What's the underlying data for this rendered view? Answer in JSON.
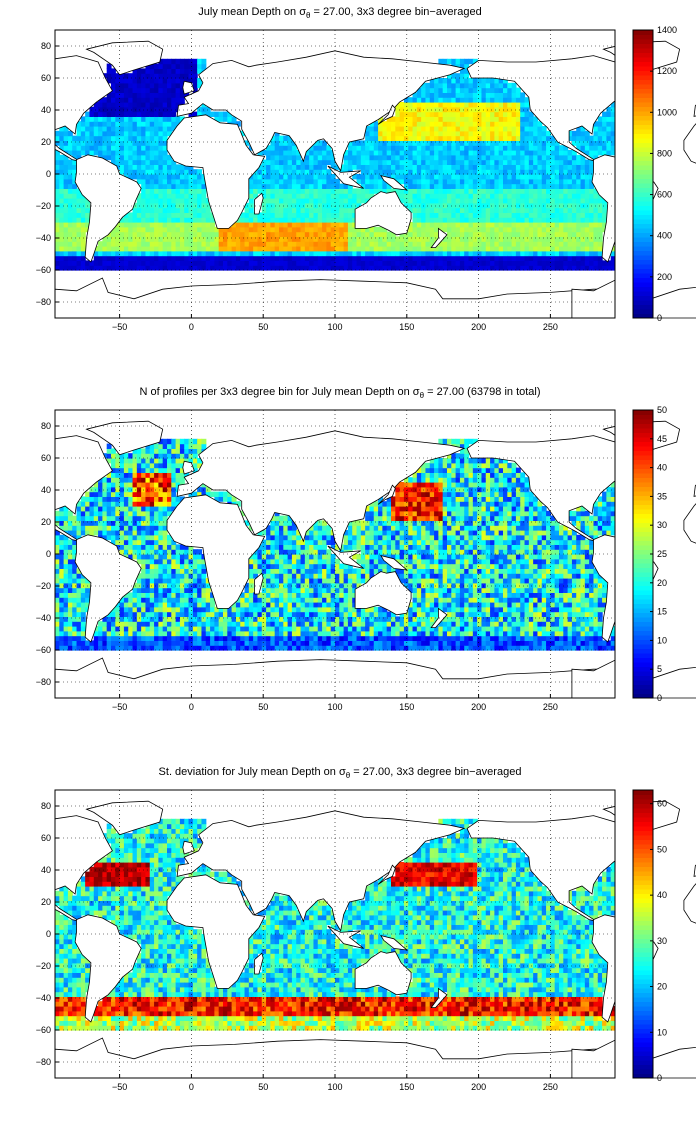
{
  "panels": [
    {
      "title_before": "July mean Depth on ",
      "title_sigma": "σ",
      "title_sub": "θ",
      "title_after": " = 27.00, 3x3 degree bin−averaged",
      "colorbar_ticks": [
        "0",
        "200",
        "400",
        "600",
        "800",
        "1000",
        "1200",
        "1400"
      ]
    },
    {
      "title_before": "N of profiles per 3x3 degree bin for July mean Depth on ",
      "title_sigma": "σ",
      "title_sub": "θ",
      "title_after": " = 27.00 (63798 in total)",
      "colorbar_ticks": [
        "0",
        "5",
        "10",
        "15",
        "20",
        "25",
        "30",
        "35",
        "40",
        "45",
        "50"
      ]
    },
    {
      "title_before": "St. deviation for July mean Depth on ",
      "title_sigma": "σ",
      "title_sub": "θ",
      "title_after": " = 27.00, 3x3 degree bin−averaged",
      "colorbar_ticks": [
        "0",
        "10",
        "20",
        "30",
        "40",
        "50",
        "60"
      ]
    }
  ],
  "chart_data": [
    {
      "type": "heatmap",
      "title": "July mean Depth on σθ = 27.00, 3x3 degree bin−averaged",
      "xlim": [
        -95,
        295
      ],
      "ylim": [
        -90,
        90
      ],
      "xticks": [
        -50,
        0,
        50,
        100,
        150,
        200,
        250
      ],
      "yticks": [
        -80,
        -60,
        -40,
        -20,
        0,
        20,
        40,
        60,
        80
      ],
      "xtick_labels": [
        "−50",
        "0",
        "50",
        "100",
        "150",
        "200",
        "250"
      ],
      "ytick_labels": [
        "−80",
        "−60",
        "−40",
        "−20",
        "0",
        "20",
        "40",
        "60",
        "80"
      ],
      "clim": [
        0,
        1400
      ],
      "colormap": "jet",
      "grid": true,
      "colorbar": "right"
    },
    {
      "type": "heatmap",
      "title": "N of profiles per 3x3 degree bin for July mean Depth on σθ = 27.00 (63798 in total)",
      "xlim": [
        -95,
        295
      ],
      "ylim": [
        -90,
        90
      ],
      "xticks": [
        -50,
        0,
        50,
        100,
        150,
        200,
        250
      ],
      "yticks": [
        -80,
        -60,
        -40,
        -20,
        0,
        20,
        40,
        60,
        80
      ],
      "xtick_labels": [
        "−50",
        "0",
        "50",
        "100",
        "150",
        "200",
        "250"
      ],
      "ytick_labels": [
        "−80",
        "−60",
        "−40",
        "−20",
        "0",
        "20",
        "40",
        "60",
        "80"
      ],
      "clim": [
        0,
        50
      ],
      "colormap": "jet",
      "grid": true,
      "colorbar": "right",
      "total_profiles": 63798
    },
    {
      "type": "heatmap",
      "title": "St. deviation for July mean Depth on σθ = 27.00, 3x3 degree bin−averaged",
      "xlim": [
        -95,
        295
      ],
      "ylim": [
        -90,
        90
      ],
      "xticks": [
        -50,
        0,
        50,
        100,
        150,
        200,
        250
      ],
      "yticks": [
        -80,
        -60,
        -40,
        -20,
        0,
        20,
        40,
        60,
        80
      ],
      "xtick_labels": [
        "−50",
        "0",
        "50",
        "100",
        "150",
        "200",
        "250"
      ],
      "ytick_labels": [
        "−80",
        "−60",
        "−40",
        "−20",
        "0",
        "20",
        "40",
        "60",
        "80"
      ],
      "clim": [
        0,
        63
      ],
      "colormap": "jet",
      "grid": true,
      "colorbar": "right"
    }
  ]
}
